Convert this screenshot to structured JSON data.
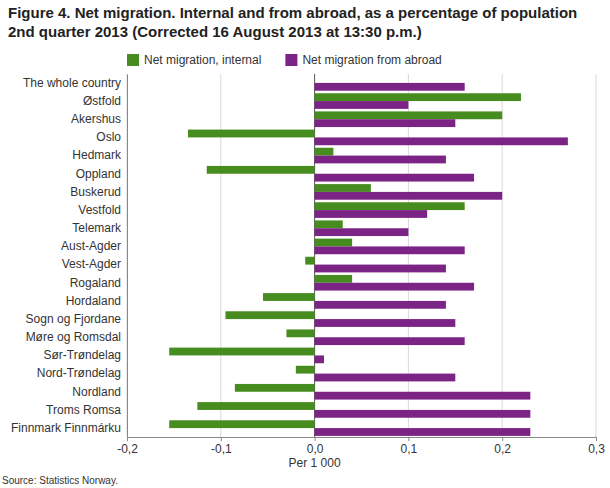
{
  "chart_data": {
    "type": "bar",
    "orientation": "horizontal",
    "title": "Figure 4. Net migration. Internal and from abroad, as a percentage of population 2nd quarter 2013 (Corrected 16 August 2013 at 13:30 p.m.)",
    "x_label": "Per 1 000",
    "source": "Source: Statistics Norway.",
    "categories": [
      "The whole country",
      "Østfold",
      "Akershus",
      "Oslo",
      "Hedmark",
      "Oppland",
      "Buskerud",
      "Vestfold",
      "Telemark",
      "Aust-Agder",
      "Vest-Agder",
      "Rogaland",
      "Hordaland",
      "Sogn og Fjordane",
      "Møre og Romsdal",
      "Sør-Trøndelag",
      "Nord-Trøndelag",
      "Nordland",
      "Troms Romsa",
      "Finnmark Finnmárku"
    ],
    "series": [
      {
        "name": "Net migration, internal",
        "color": "#478c1f",
        "values": [
          0,
          0.22,
          0.2,
          -0.135,
          0.02,
          -0.115,
          0.06,
          0.16,
          0.03,
          0.04,
          -0.01,
          0.04,
          -0.055,
          -0.095,
          -0.03,
          -0.155,
          -0.02,
          -0.085,
          -0.125,
          -0.155
        ]
      },
      {
        "name": "Net migration from abroad",
        "color": "#7c2386",
        "values": [
          0.16,
          0.1,
          0.15,
          0.27,
          0.14,
          0.17,
          0.2,
          0.12,
          0.1,
          0.16,
          0.14,
          0.17,
          0.14,
          0.15,
          0.16,
          0.01,
          0.15,
          0.23,
          0.23,
          0.23
        ]
      }
    ],
    "xlim": [
      -0.2,
      0.3
    ],
    "xticks": [
      {
        "value": -0.2,
        "label": "-0,2"
      },
      {
        "value": -0.1,
        "label": "-0,1"
      },
      {
        "value": 0,
        "label": "0,0"
      },
      {
        "value": 0.1,
        "label": "0,1"
      },
      {
        "value": 0.2,
        "label": "0,2"
      },
      {
        "value": 0.3,
        "label": "0,3"
      }
    ],
    "grid": true,
    "legend": "top"
  }
}
